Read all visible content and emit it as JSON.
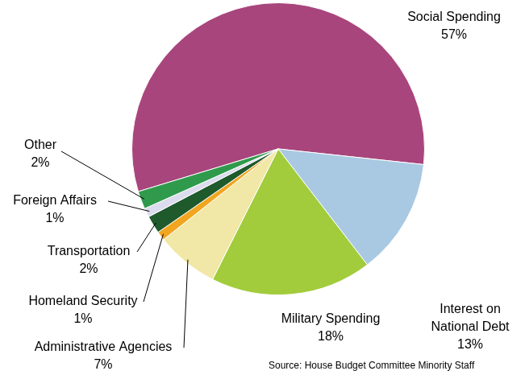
{
  "chart_data": {
    "type": "pie",
    "categories": [
      "Social Spending",
      "Interest on National Debt",
      "Military Spending",
      "Administrative Agencies",
      "Homeland Security",
      "Transportation",
      "Foreign Affairs",
      "Other"
    ],
    "values": [
      57,
      13,
      18,
      7,
      1,
      2,
      1,
      2
    ],
    "value_labels": [
      "57%",
      "13%",
      "18%",
      "7%",
      "1%",
      "2%",
      "1%",
      "2%"
    ],
    "colors": [
      "#a8457c",
      "#a9c9e2",
      "#a2cc3c",
      "#f1e7a6",
      "#f2a51e",
      "#1f5a2c",
      "#dcdcee",
      "#2f9a4c"
    ],
    "data_labels": true,
    "annotations": [
      "Source: House Budget Committee Minority Staff"
    ]
  }
}
